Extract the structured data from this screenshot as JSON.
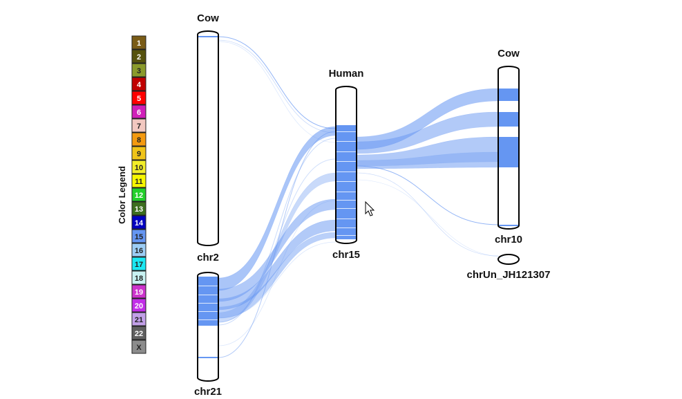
{
  "legend": {
    "title": "Color Legend",
    "entries": [
      {
        "label": "1",
        "color": "#7a5c17",
        "text": "#ffffff"
      },
      {
        "label": "2",
        "color": "#56520e",
        "text": "#ffffff"
      },
      {
        "label": "3",
        "color": "#8a9a2b",
        "text": "#222222"
      },
      {
        "label": "4",
        "color": "#c00000",
        "text": "#ffffff"
      },
      {
        "label": "5",
        "color": "#ff0000",
        "text": "#ffffff"
      },
      {
        "label": "6",
        "color": "#d01fb9",
        "text": "#ffffff"
      },
      {
        "label": "7",
        "color": "#f2c8c0",
        "text": "#222222"
      },
      {
        "label": "8",
        "color": "#f49a10",
        "text": "#222222"
      },
      {
        "label": "9",
        "color": "#f0c419",
        "text": "#222222"
      },
      {
        "label": "10",
        "color": "#f2ee29",
        "text": "#222222"
      },
      {
        "label": "11",
        "color": "#f7f700",
        "text": "#222222"
      },
      {
        "label": "12",
        "color": "#22d02b",
        "text": "#ffffff"
      },
      {
        "label": "13",
        "color": "#3d6e1e",
        "text": "#ffffff"
      },
      {
        "label": "14",
        "color": "#0000c0",
        "text": "#ffffff"
      },
      {
        "label": "15",
        "color": "#6596f2",
        "text": "#222222"
      },
      {
        "label": "16",
        "color": "#9ccdf5",
        "text": "#222222"
      },
      {
        "label": "17",
        "color": "#1ae8f2",
        "text": "#222222"
      },
      {
        "label": "18",
        "color": "#c8f2f2",
        "text": "#222222"
      },
      {
        "label": "19",
        "color": "#cc33cc",
        "text": "#ffffff"
      },
      {
        "label": "20",
        "color": "#c22ee8",
        "text": "#ffffff"
      },
      {
        "label": "21",
        "color": "#c2a0e8",
        "text": "#222222"
      },
      {
        "label": "22",
        "color": "#606060",
        "text": "#ffffff"
      },
      {
        "label": "X",
        "color": "#8c8c8c",
        "text": "#222222"
      }
    ]
  },
  "genomes": {
    "left": {
      "title": "Cow"
    },
    "middle": {
      "title": "Human"
    },
    "right": {
      "title": "Cow"
    }
  },
  "chromosomes": {
    "chr2": "chr2",
    "chr21": "chr21",
    "chr15": "chr15",
    "chr10": "chr10",
    "chrUn": "chrUn_JH121307"
  },
  "colors": {
    "synteny": "#6596f2",
    "outline": "#000000"
  }
}
